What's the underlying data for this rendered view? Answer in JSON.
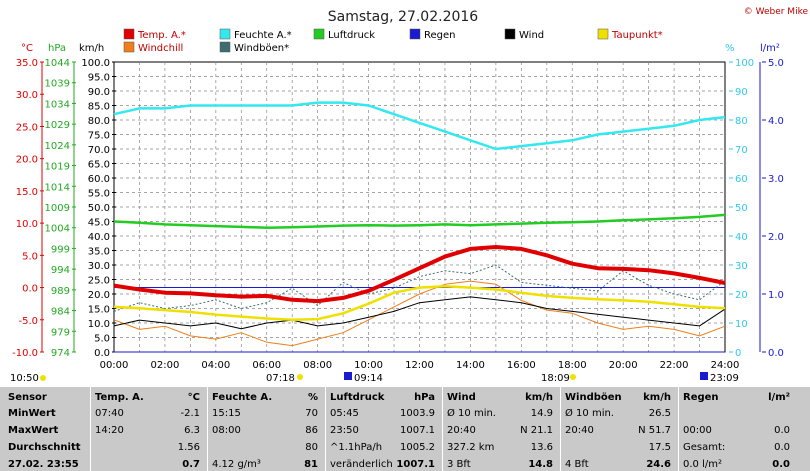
{
  "header": {
    "title": "Samstag, 27.02.2016",
    "copyright": "© Weber Mike"
  },
  "legend": [
    {
      "label": "Temp. A.*",
      "color": "#e00000"
    },
    {
      "label": "Feuchte A.*",
      "color": "#33e8ee"
    },
    {
      "label": "Luftdruck",
      "color": "#22cc22"
    },
    {
      "label": "Regen",
      "color": "#1a1ad0"
    },
    {
      "label": "Wind",
      "color": "#000000"
    },
    {
      "label": "Taupunkt*",
      "color": "#f0e000"
    },
    {
      "label": "Windchill",
      "color": "#ee7f1a"
    },
    {
      "label": "Windböen*",
      "color": "#3c6e70"
    }
  ],
  "axes": {
    "temp_unit": "°C",
    "hpa_unit": "hPa",
    "kmh_unit": "km/h",
    "pct_unit": "%",
    "rain_unit": "l/m²",
    "temp_ticks": [
      "35.0",
      "30.0",
      "25.0",
      "20.0",
      "15.0",
      "10.0",
      "5.0",
      "0.0",
      "-5.0",
      "-10.0"
    ],
    "hpa_ticks": [
      "1044",
      "1039",
      "1034",
      "1029",
      "1024",
      "1019",
      "1014",
      "1009",
      "1004",
      "999",
      "994",
      "989",
      "984",
      "979",
      "974"
    ],
    "kmh_ticks": [
      "100.0",
      "95.0",
      "90.0",
      "85.0",
      "80.0",
      "75.0",
      "70.0",
      "65.0",
      "60.0",
      "55.0",
      "50.0",
      "45.0",
      "40.0",
      "35.0",
      "30.0",
      "25.0",
      "20.0",
      "15.0",
      "10.0",
      "5.0",
      "0.0"
    ],
    "pct_ticks": [
      "100",
      "90",
      "80",
      "70",
      "60",
      "50",
      "40",
      "30",
      "20",
      "10",
      "0"
    ],
    "rain_ticks": [
      "5.0",
      "4.0",
      "3.0",
      "2.0",
      "1.0",
      "0.0"
    ],
    "time_ticks": [
      "00:00",
      "02:00",
      "04:00",
      "06:00",
      "08:00",
      "10:00",
      "12:00",
      "14:00",
      "16:00",
      "18:00",
      "20:00",
      "22:00",
      "24:00"
    ]
  },
  "events": {
    "sunrise": "07:18",
    "sunset": "18:09",
    "moonrise": "09:14",
    "moonset": "23:09",
    "time_left": "10:50"
  },
  "chart_data": {
    "type": "line",
    "x_label": "Uhrzeit",
    "x": [
      0,
      1,
      2,
      3,
      4,
      5,
      6,
      7,
      8,
      9,
      10,
      11,
      12,
      13,
      14,
      15,
      16,
      17,
      18,
      19,
      20,
      21,
      22,
      23,
      24
    ],
    "series": [
      {
        "name": "Temp. A.*",
        "unit": "°C",
        "values": [
          0.3,
          -0.3,
          -0.8,
          -0.9,
          -1.2,
          -1.4,
          -1.3,
          -1.9,
          -2.1,
          -1.6,
          -0.5,
          1.2,
          3.0,
          4.8,
          6.0,
          6.3,
          6.0,
          5.0,
          3.7,
          3.0,
          2.9,
          2.7,
          2.2,
          1.5,
          0.7
        ]
      },
      {
        "name": "Feuchte A.*",
        "unit": "%",
        "values": [
          82,
          84,
          84,
          85,
          85,
          85,
          85,
          85,
          86,
          86,
          85,
          82,
          79,
          76,
          73,
          70,
          71,
          72,
          73,
          75,
          76,
          77,
          78,
          80,
          81
        ]
      },
      {
        "name": "Luftdruck",
        "unit": "hPa",
        "values": [
          1005.5,
          1005.2,
          1004.8,
          1004.6,
          1004.4,
          1004.2,
          1004.0,
          1004.1,
          1004.3,
          1004.5,
          1004.6,
          1004.5,
          1004.6,
          1004.8,
          1004.6,
          1004.8,
          1005.0,
          1005.2,
          1005.3,
          1005.5,
          1005.8,
          1006.0,
          1006.3,
          1006.6,
          1007.1
        ]
      },
      {
        "name": "Regen",
        "unit": "l/m²",
        "values": [
          0,
          0,
          0,
          0,
          0,
          0,
          0,
          0,
          0,
          0,
          0,
          0,
          0,
          0,
          0,
          0,
          0,
          0,
          0,
          0,
          0,
          0,
          0,
          0,
          0
        ]
      },
      {
        "name": "Wind",
        "unit": "km/h",
        "values": [
          9,
          11,
          10,
          9,
          10,
          8,
          10,
          11,
          9,
          10,
          12,
          14,
          17,
          18,
          19,
          18,
          17,
          15,
          14,
          13,
          12,
          11,
          10,
          9,
          14.8
        ]
      },
      {
        "name": "Taupunkt*",
        "unit": "°C",
        "values": [
          -3.0,
          -3.2,
          -3.5,
          -3.8,
          -4.2,
          -4.5,
          -4.8,
          -5.0,
          -4.9,
          -4.0,
          -2.5,
          -0.8,
          0.0,
          0.2,
          0.0,
          -0.3,
          -0.8,
          -1.3,
          -1.6,
          -1.8,
          -2.0,
          -2.2,
          -2.6,
          -3.0,
          -3.2
        ]
      },
      {
        "name": "Windchill",
        "unit": "°C",
        "values": [
          -5.0,
          -6.5,
          -6.0,
          -7.5,
          -8.0,
          -7.0,
          -8.5,
          -9.0,
          -8.0,
          -7.0,
          -5.0,
          -3.0,
          -1.0,
          0.5,
          1.0,
          0.5,
          -2.0,
          -3.5,
          -4.0,
          -5.5,
          -6.5,
          -6.0,
          -6.5,
          -7.5,
          -6.0
        ]
      },
      {
        "name": "Windböen*",
        "unit": "km/h",
        "values": [
          14,
          17,
          15,
          16,
          18,
          15,
          17,
          22,
          16,
          24,
          20,
          22,
          26,
          28,
          27,
          30,
          24,
          23,
          22,
          21,
          28,
          23,
          20,
          18,
          24.6
        ]
      }
    ],
    "y_ranges": {
      "temp": [
        -10,
        35
      ],
      "hpa": [
        974,
        1044
      ],
      "kmh": [
        0,
        100
      ],
      "pct": [
        0,
        100
      ],
      "rain": [
        0,
        5
      ]
    },
    "grid": true
  },
  "table": {
    "headers": [
      "Sensor",
      "Temp. A.",
      "°C",
      "Feuchte A.",
      "%",
      "Luftdruck",
      "hPa",
      "Wind",
      "km/h",
      "Windböen",
      "km/h",
      "Regen",
      "l/m²"
    ],
    "rows": [
      {
        "label": "MinWert",
        "cells": [
          "07:40",
          "-2.1",
          "15:15",
          "70",
          "05:45",
          "1003.9",
          "Ø 10 min.",
          "14.9",
          "Ø 10 min.",
          "26.5",
          "",
          ""
        ]
      },
      {
        "label": "MaxWert",
        "cells": [
          "14:20",
          "6.3",
          "08:00",
          "86",
          "23:50",
          "1007.1",
          "20:40",
          "N 21.1",
          "20:40",
          "N 51.7",
          "00:00",
          "0.0"
        ]
      },
      {
        "label": "Durchschnitt",
        "cells": [
          "",
          "1.56",
          "",
          "80",
          "^1.1hPa/h",
          "1005.2",
          "327.2 km",
          "13.6",
          "",
          "17.5",
          "Gesamt:",
          "0.0"
        ]
      },
      {
        "label": "27.02. 23:55",
        "cells": [
          "",
          "0.7",
          "4.12 g/m³",
          "81",
          "veränderlich",
          "1007.1",
          "3 Bft",
          "14.8",
          "4 Bft",
          "24.6",
          "0.0 l/m²",
          "0.0"
        ]
      }
    ]
  }
}
